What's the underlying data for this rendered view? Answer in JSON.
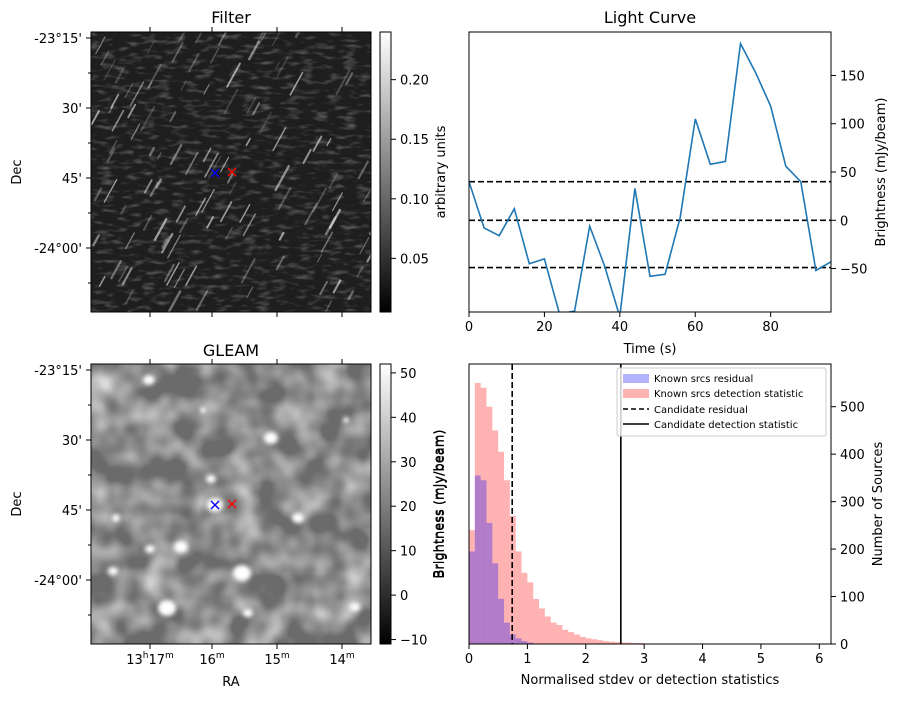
{
  "chart_data": [
    {
      "type": "heatmap",
      "title": "Filter",
      "ylabel": "Dec",
      "colorbar_label": "arbitrary units",
      "colorbar_ticks": [
        "0.05",
        "0.10",
        "0.15",
        "0.20"
      ],
      "colorbar_range": [
        0.005,
        0.24
      ],
      "dec_ticks": [
        "-23°15'",
        "30'",
        "45'",
        "-24°00'"
      ],
      "colormap": "gray",
      "markers": [
        {
          "symbol": "x",
          "color": "#0000ff"
        },
        {
          "symbol": "x",
          "color": "#ff0000"
        }
      ]
    },
    {
      "type": "line",
      "title": "Light Curve",
      "xlabel": "Time (s)",
      "ylabel": "Brightness (mJy/beam)",
      "xlim": [
        0,
        96
      ],
      "ylim": [
        -95,
        195
      ],
      "xticks": [
        0,
        20,
        40,
        60,
        80
      ],
      "yticks": [
        -50,
        0,
        50,
        100,
        150
      ],
      "line_color": "#1f77b4",
      "x": [
        0,
        4,
        8,
        12,
        16,
        20,
        24,
        28,
        32,
        36,
        40,
        44,
        48,
        52,
        56,
        60,
        64,
        68,
        72,
        76,
        80,
        84,
        88,
        92,
        96
      ],
      "y": [
        40,
        -8,
        -16,
        12,
        -45,
        -40,
        -97,
        -94,
        -6,
        -48,
        -100,
        33,
        -58,
        -56,
        3,
        105,
        58,
        61,
        183,
        153,
        118,
        56,
        40,
        -52,
        -43
      ],
      "hlines": [
        40,
        0,
        -49
      ]
    },
    {
      "type": "heatmap",
      "title": "GLEAM",
      "xlabel": "RA",
      "ylabel": "Dec",
      "colorbar_label": "Brightness (mJy/beam)",
      "colorbar_ticks": [
        "−10",
        "0",
        "10",
        "20",
        "30",
        "40",
        "50"
      ],
      "colorbar_range": [
        -11,
        52
      ],
      "dec_ticks": [
        "-23°15'",
        "30'",
        "45'",
        "-24°00'"
      ],
      "ra_ticks": [
        {
          "base": "13",
          "h": "h",
          "mid": "17",
          "m": "m"
        },
        {
          "base": "16",
          "h": "",
          "mid": "",
          "m": "m"
        },
        {
          "base": "15",
          "h": "",
          "mid": "",
          "m": "m"
        },
        {
          "base": "14",
          "h": "",
          "mid": "",
          "m": "m"
        }
      ],
      "colormap": "gray",
      "markers": [
        {
          "symbol": "x",
          "color": "#0000ff"
        },
        {
          "symbol": "x",
          "color": "#ff0000"
        }
      ]
    },
    {
      "type": "bar",
      "subtype": "histogram",
      "xlabel": "Normalised stdev or detection statistics",
      "ylabel_left": "Brightness (mJy/beam)",
      "ylabel_right": "Number of Sources",
      "xlim": [
        0,
        6.2
      ],
      "ylim": [
        0,
        590
      ],
      "xticks": [
        0,
        1,
        2,
        3,
        4,
        5,
        6
      ],
      "yticks": [
        0,
        100,
        200,
        300,
        400,
        500
      ],
      "bin_width": 0.1,
      "legend_position": "top-right",
      "series": [
        {
          "name": "Known srcs residual",
          "color": "#0000ff",
          "alpha": 0.3,
          "bin_starts": [
            0,
            0.1,
            0.2,
            0.3,
            0.4,
            0.5,
            0.6,
            0.7,
            0.8,
            0.9,
            1.0
          ],
          "values": [
            195,
            355,
            345,
            255,
            170,
            95,
            45,
            20,
            12,
            6,
            3
          ]
        },
        {
          "name": "Known srcs detection statistic",
          "color": "#ff0000",
          "alpha": 0.3,
          "bin_starts": [
            0,
            0.1,
            0.2,
            0.3,
            0.4,
            0.5,
            0.6,
            0.7,
            0.8,
            0.9,
            1.0,
            1.1,
            1.2,
            1.3,
            1.4,
            1.5,
            1.6,
            1.7,
            1.8,
            1.9,
            2.0,
            2.1,
            2.2,
            2.3,
            2.4,
            2.5,
            2.6,
            2.7,
            2.8,
            2.9,
            3.0
          ],
          "values": [
            240,
            550,
            540,
            500,
            450,
            405,
            345,
            270,
            195,
            150,
            130,
            95,
            75,
            58,
            45,
            40,
            30,
            25,
            20,
            15,
            12,
            10,
            8,
            6,
            5,
            4,
            3,
            3,
            2,
            2,
            1
          ]
        }
      ],
      "vlines": [
        {
          "name": "Candidate residual",
          "x": 0.74,
          "style": "dashed"
        },
        {
          "name": "Candidate detection statistic",
          "x": 2.6,
          "style": "solid"
        }
      ]
    }
  ]
}
